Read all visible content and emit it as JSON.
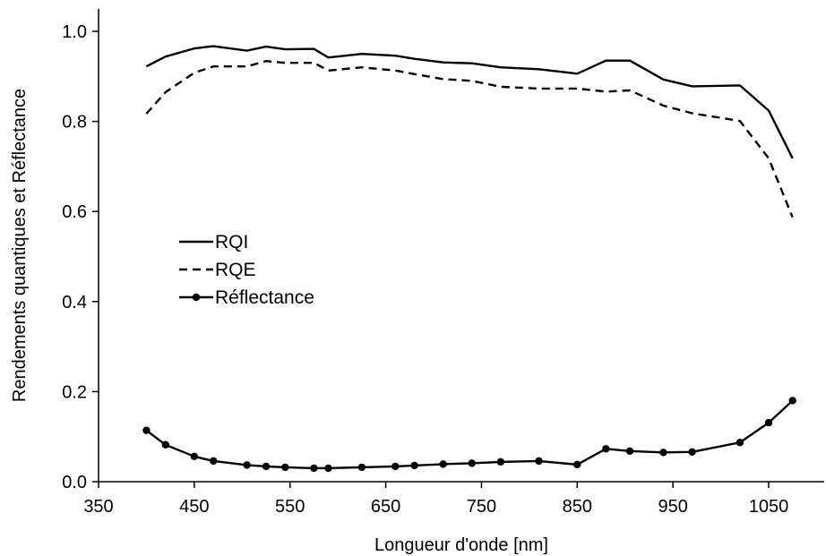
{
  "chart_data": {
    "type": "line",
    "title": "",
    "xlabel": "Longueur d'onde [nm]",
    "ylabel": "Rendements quantiques et Réflectance",
    "xlim": [
      350,
      1100
    ],
    "ylim": [
      0,
      1.0
    ],
    "xticks": [
      350,
      450,
      550,
      650,
      750,
      850,
      950,
      1050
    ],
    "yticks": [
      0.0,
      0.2,
      0.4,
      0.6,
      0.8,
      1.0
    ],
    "xtick_labels": [
      "350",
      "450",
      "550",
      "650",
      "750",
      "850",
      "950",
      "1050"
    ],
    "ytick_labels": [
      "0.0",
      "0.2",
      "0.4",
      "0.6",
      "0.8",
      "1.0"
    ],
    "grid": false,
    "legend_position": "center-left",
    "series": [
      {
        "name": "RQI",
        "style": "solid",
        "markers": false,
        "color": "#000000",
        "x": [
          400,
          420,
          450,
          470,
          505,
          525,
          545,
          575,
          590,
          625,
          660,
          680,
          710,
          740,
          770,
          810,
          850,
          880,
          905,
          940,
          970,
          1020,
          1050,
          1075
        ],
        "y": [
          0.922,
          0.944,
          0.962,
          0.967,
          0.957,
          0.966,
          0.96,
          0.961,
          0.942,
          0.95,
          0.946,
          0.939,
          0.931,
          0.929,
          0.92,
          0.916,
          0.906,
          0.935,
          0.935,
          0.893,
          0.878,
          0.88,
          0.824,
          0.718
        ]
      },
      {
        "name": "RQE",
        "style": "dashed",
        "markers": false,
        "color": "#000000",
        "x": [
          400,
          420,
          450,
          470,
          505,
          525,
          545,
          575,
          590,
          625,
          660,
          680,
          710,
          740,
          770,
          810,
          850,
          880,
          905,
          940,
          970,
          1020,
          1050,
          1075
        ],
        "y": [
          0.817,
          0.865,
          0.908,
          0.922,
          0.922,
          0.934,
          0.93,
          0.93,
          0.913,
          0.92,
          0.913,
          0.905,
          0.894,
          0.89,
          0.877,
          0.873,
          0.873,
          0.866,
          0.869,
          0.835,
          0.818,
          0.801,
          0.718,
          0.587
        ]
      },
      {
        "name": "Réflectance",
        "style": "solid",
        "markers": true,
        "color": "#000000",
        "x": [
          400,
          420,
          450,
          470,
          505,
          525,
          545,
          575,
          590,
          625,
          660,
          680,
          710,
          740,
          770,
          810,
          850,
          880,
          905,
          940,
          970,
          1020,
          1050,
          1075
        ],
        "y": [
          0.114,
          0.082,
          0.056,
          0.046,
          0.037,
          0.034,
          0.032,
          0.03,
          0.03,
          0.032,
          0.034,
          0.036,
          0.039,
          0.041,
          0.044,
          0.046,
          0.038,
          0.073,
          0.068,
          0.065,
          0.066,
          0.087,
          0.131,
          0.18
        ]
      }
    ]
  }
}
